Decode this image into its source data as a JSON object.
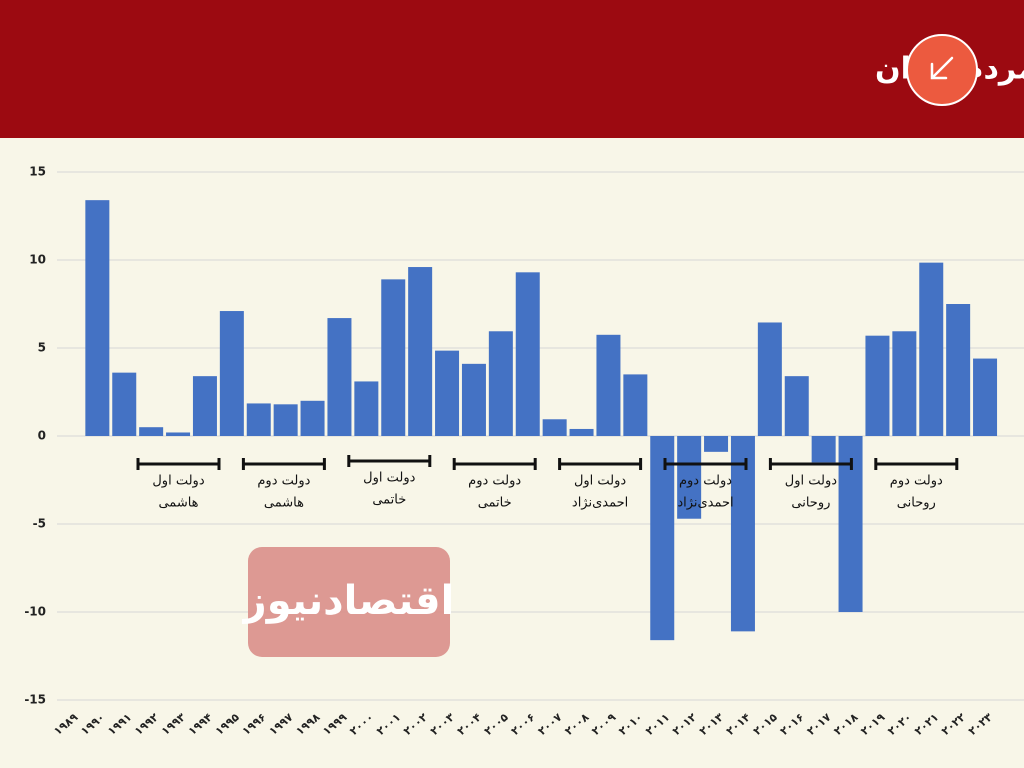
{
  "chart_data": {
    "type": "bar",
    "title": "نرخ رشد درآمد سرانه مردم ایران",
    "categories": [
      "۱۹۸۹",
      "۱۹۹۰",
      "۱۹۹۱",
      "۱۹۹۲",
      "۱۹۹۳",
      "۱۹۹۴",
      "۱۹۹۵",
      "۱۹۹۶",
      "۱۹۹۷",
      "۱۹۹۸",
      "۱۹۹۹",
      "۲۰۰۰",
      "۲۰۰۱",
      "۲۰۰۲",
      "۲۰۰۳",
      "۲۰۰۴",
      "۲۰۰۵",
      "۲۰۰۶",
      "۲۰۰۷",
      "۲۰۰۸",
      "۲۰۰۹",
      "۲۰۱۰",
      "۲۰۱۱",
      "۲۰۱۲",
      "۲۰۱۳",
      "۲۰۱۴",
      "۲۰۱۵",
      "۲۰۱۶",
      "۲۰۱۷",
      "۲۰۱۸",
      "۲۰۱۹",
      "۲۰۲۰",
      "۲۰۲۱",
      "۲۰۲۲",
      "۲۰۲۳"
    ],
    "values": [
      null,
      13.4,
      3.6,
      0.5,
      0.2,
      3.4,
      7.1,
      1.85,
      1.8,
      2.0,
      6.7,
      3.1,
      8.9,
      9.6,
      4.85,
      4.1,
      5.95,
      9.3,
      0.95,
      0.4,
      5.75,
      3.5,
      -11.6,
      -4.7,
      -0.9,
      -11.1,
      6.45,
      3.4,
      -1.5,
      -10.0,
      5.7,
      5.95,
      9.85,
      7.5,
      4.4
    ],
    "color": "#4472c4",
    "ylim": [
      -15,
      15
    ],
    "yticks": [
      -15,
      -10,
      -5,
      0,
      5,
      10,
      15
    ],
    "grid": true,
    "annotations": [
      [
        "دولت اول",
        "هاشمی"
      ],
      [
        "دولت دوم",
        "هاشمی"
      ],
      [
        "دولت اول",
        "خاتمی"
      ],
      [
        "دولت دوم",
        "خاتمی"
      ],
      [
        "دولت اول",
        "احمدی‌نژاد"
      ],
      [
        "دولت دوم",
        "احمدی‌نژاد"
      ],
      [
        "دولت اول",
        "روحانی"
      ],
      [
        "دولت دوم",
        "روحانی"
      ]
    ],
    "watermark": "اقتصادنیوز"
  }
}
